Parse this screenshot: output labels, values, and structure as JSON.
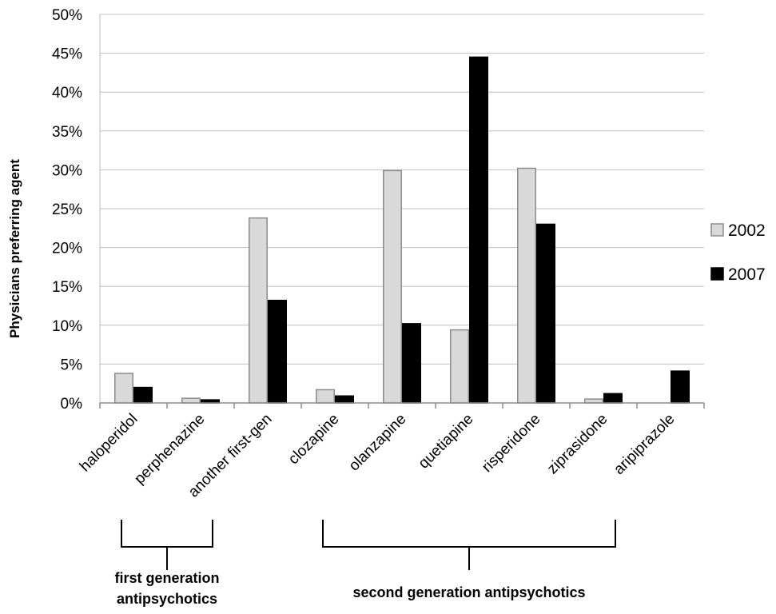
{
  "chart_data": {
    "type": "bar",
    "ylabel": "Physicians preferring agent",
    "ylim": [
      0,
      50
    ],
    "y_ticks": [
      "0%",
      "5%",
      "10%",
      "15%",
      "20%",
      "25%",
      "30%",
      "35%",
      "40%",
      "45%",
      "50%"
    ],
    "y_tick_values": [
      0,
      5,
      10,
      15,
      20,
      25,
      30,
      35,
      40,
      45,
      50
    ],
    "grid": true,
    "legend_position": "right",
    "categories": [
      "haloperidol",
      "perphenazine",
      "another first-gen",
      "clozapine",
      "olanzapine",
      "quetiapine",
      "risperidone",
      "ziprasidone",
      "aripiprazole"
    ],
    "series": [
      {
        "name": "2002",
        "color": "#d9d9d9",
        "edge": "#8c8c8c",
        "values": [
          3.8,
          0.6,
          23.8,
          1.7,
          29.9,
          9.4,
          30.2,
          0.5,
          0
        ]
      },
      {
        "name": "2007",
        "color": "#000000",
        "edge": "#000000",
        "values": [
          2.0,
          0.4,
          13.2,
          0.9,
          10.2,
          44.5,
          23.0,
          1.2,
          4.1
        ]
      }
    ],
    "groups": [
      {
        "label_lines": [
          "first generation",
          "antipsychotics"
        ],
        "from": 0,
        "to": 1
      },
      {
        "label_lines": [
          "second generation antipsychotics"
        ],
        "from": 3,
        "to": 7
      }
    ]
  }
}
